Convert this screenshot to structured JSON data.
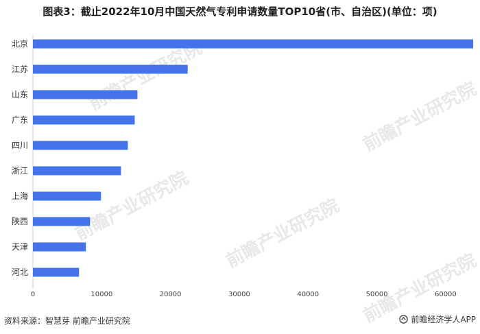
{
  "title": "图表3：截止2022年10月中国天然气专利申请数量TOP10省(市、自治区)(单位：项)",
  "chart_data": {
    "type": "bar",
    "orientation": "horizontal",
    "categories": [
      "北京",
      "江苏",
      "山东",
      "广东",
      "四川",
      "浙江",
      "上海",
      "陕西",
      "天津",
      "河北"
    ],
    "values": [
      64000,
      22500,
      15200,
      14800,
      13800,
      12800,
      9900,
      8300,
      7700,
      6700
    ],
    "xlim": [
      0,
      64000
    ],
    "xticks": [
      0,
      10000,
      20000,
      30000,
      40000,
      50000,
      60000
    ],
    "bar_color": "#4472e8",
    "grid": false
  },
  "footer": {
    "source": "资料来源：智慧芽 前瞻产业研究院",
    "brand": "前瞻经济学人APP"
  },
  "watermark": "前瞻产业研究院"
}
